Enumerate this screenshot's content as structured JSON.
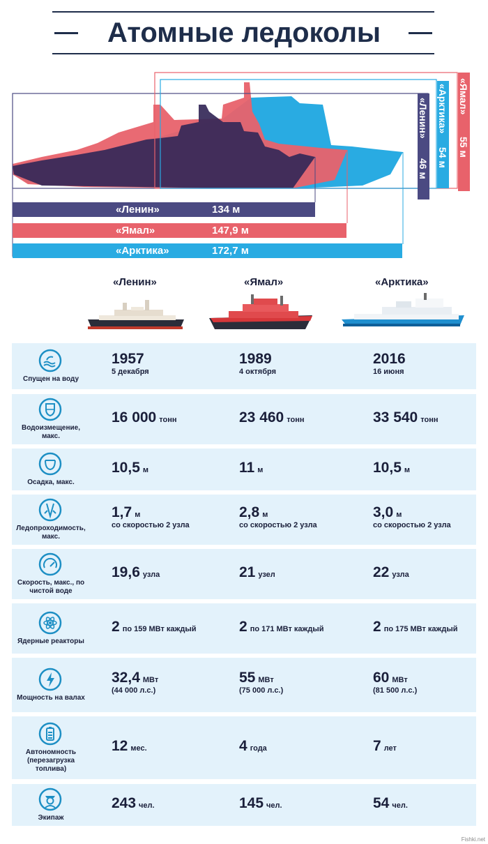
{
  "title": "Атомные ледоколы",
  "colors": {
    "lenin": "#4b4a82",
    "yamal": "#e8626b",
    "arktika": "#29abe2",
    "navy": "#1e2d4a",
    "row_bg": "#e3f2fb",
    "icon": "#1d8fc4"
  },
  "chart_data": {
    "type": "bar",
    "categories": [
      "«Ленин»",
      "«Ямал»",
      "«Арктика»"
    ],
    "series": [
      {
        "name": "length",
        "values": [
          134,
          147.9,
          172.7
        ],
        "labels": [
          "134 м",
          "147,9 м",
          "172,7 м"
        ]
      },
      {
        "name": "height",
        "values": [
          46,
          55,
          54
        ],
        "labels": [
          "46 м",
          "55 м",
          "54 м"
        ]
      }
    ],
    "title": "Атомные ледоколы"
  },
  "ships": [
    "«Ленин»",
    "«Ямал»",
    "«Арктика»"
  ],
  "height_bars": [
    {
      "name": "«Ленин»",
      "value": "46 м"
    },
    {
      "name": "«Арктика»",
      "value": "54 м"
    },
    {
      "name": "«Ямал»",
      "value": "55 м"
    }
  ],
  "rows": [
    {
      "label": "Спущен на воду",
      "icon": "wave-icon",
      "cells": [
        {
          "big": "1957",
          "unit": "",
          "sub": "5 декабря"
        },
        {
          "big": "1989",
          "unit": "",
          "sub": "4 октября"
        },
        {
          "big": "2016",
          "unit": "",
          "sub": "16 июня"
        }
      ]
    },
    {
      "label": "Водоизмещение, макс.",
      "icon": "shield-icon",
      "cells": [
        {
          "big": "16 000",
          "unit": "тонн",
          "sub": ""
        },
        {
          "big": "23 460",
          "unit": "тонн",
          "sub": ""
        },
        {
          "big": "33 540",
          "unit": "тонн",
          "sub": ""
        }
      ]
    },
    {
      "label": "Осадка, макс.",
      "icon": "draft-icon",
      "cells": [
        {
          "big": "10,5",
          "unit": "м",
          "sub": ""
        },
        {
          "big": "11",
          "unit": "м",
          "sub": ""
        },
        {
          "big": "10,5",
          "unit": "м",
          "sub": ""
        }
      ]
    },
    {
      "label": "Ледопроходимость, макс.",
      "icon": "ice-icon",
      "cells": [
        {
          "big": "1,7",
          "unit": "м",
          "sub": "со скоростью 2 узла"
        },
        {
          "big": "2,8",
          "unit": "м",
          "sub": "со скоростью 2 узла"
        },
        {
          "big": "3,0",
          "unit": "м",
          "sub": "со скоростью 2 узла"
        }
      ]
    },
    {
      "label": "Скорость, макс., по чистой воде",
      "icon": "speedometer-icon",
      "cells": [
        {
          "big": "19,6",
          "unit": "узла",
          "sub": ""
        },
        {
          "big": "21",
          "unit": "узел",
          "sub": ""
        },
        {
          "big": "22",
          "unit": "узла",
          "sub": ""
        }
      ]
    },
    {
      "label": "Ядерные реакторы",
      "icon": "atom-icon",
      "cells": [
        {
          "big": "2",
          "unit": "по 159 МВт каждый",
          "sub": ""
        },
        {
          "big": "2",
          "unit": "по 171 МВт каждый",
          "sub": ""
        },
        {
          "big": "2",
          "unit": "по 175 МВт каждый",
          "sub": ""
        }
      ]
    },
    {
      "label": "Мощность на валах",
      "icon": "lightning-icon",
      "cells": [
        {
          "big": "32,4",
          "unit": "МВт",
          "sub": "(44 000 л.с.)"
        },
        {
          "big": "55",
          "unit": "МВт",
          "sub": "(75 000 л.с.)"
        },
        {
          "big": "60",
          "unit": "МВт",
          "sub": "(81 500 л.с.)"
        }
      ]
    },
    {
      "label": "Автономность (перезагрузка топлива)",
      "icon": "battery-icon",
      "cells": [
        {
          "big": "12",
          "unit": "мес.",
          "sub": ""
        },
        {
          "big": "4",
          "unit": "года",
          "sub": ""
        },
        {
          "big": "7",
          "unit": "лет",
          "sub": ""
        }
      ]
    },
    {
      "label": "Экипаж",
      "icon": "sailor-icon",
      "cells": [
        {
          "big": "243",
          "unit": "чел.",
          "sub": ""
        },
        {
          "big": "145",
          "unit": "чел.",
          "sub": ""
        },
        {
          "big": "54",
          "unit": "чел.",
          "sub": ""
        }
      ]
    }
  ],
  "watermark": "Fishki.net"
}
